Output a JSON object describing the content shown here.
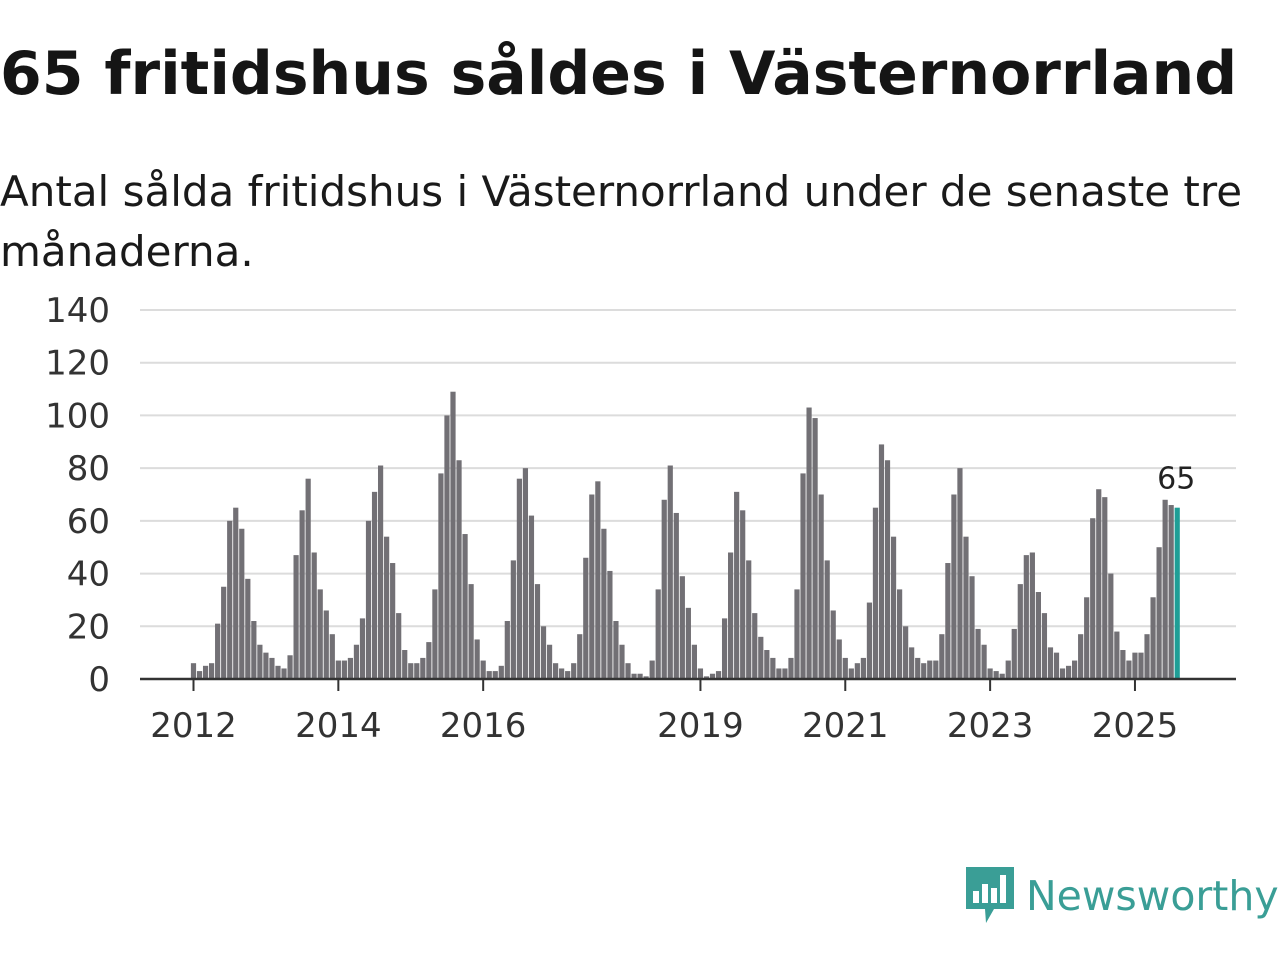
{
  "title": "65 fritidshus såldes i Västernorrland",
  "subtitle": "Antal sålda fritidshus i Västernorrland under de senaste tre månaderna.",
  "brand": {
    "name": "Newsworthy",
    "icon": "newsworthy-logo-icon",
    "color": "#3a9e96"
  },
  "colors": {
    "bar": "#727075",
    "highlight": "#1f9e96"
  },
  "chart_data": {
    "type": "bar",
    "title": "Antal sålda fritidshus i Västernorrland under de senaste tre månaderna.",
    "xlabel": "",
    "ylabel": "",
    "ylim": [
      0,
      140
    ],
    "yticks": [
      0,
      20,
      40,
      60,
      80,
      100,
      120,
      140
    ],
    "x_start": "2012-01",
    "xtick_labels": [
      {
        "label": "2012",
        "index": 0
      },
      {
        "label": "2014",
        "index": 24
      },
      {
        "label": "2016",
        "index": 48
      },
      {
        "label": "2019",
        "index": 84
      },
      {
        "label": "2021",
        "index": 108
      },
      {
        "label": "2023",
        "index": 132
      },
      {
        "label": "2025",
        "index": 156
      }
    ],
    "highlight_label": "65",
    "values": [
      6,
      3,
      5,
      6,
      21,
      35,
      60,
      65,
      57,
      38,
      22,
      13,
      10,
      8,
      5,
      4,
      9,
      47,
      64,
      76,
      48,
      34,
      26,
      17,
      7,
      7,
      8,
      13,
      23,
      60,
      71,
      81,
      54,
      44,
      25,
      11,
      6,
      6,
      8,
      14,
      34,
      78,
      100,
      109,
      83,
      55,
      36,
      15,
      7,
      3,
      3,
      5,
      22,
      45,
      76,
      80,
      62,
      36,
      20,
      13,
      6,
      4,
      3,
      6,
      17,
      46,
      70,
      75,
      57,
      41,
      22,
      13,
      6,
      2,
      2,
      1,
      7,
      34,
      68,
      81,
      63,
      39,
      27,
      13,
      4,
      1,
      2,
      3,
      23,
      48,
      71,
      64,
      45,
      25,
      16,
      11,
      8,
      4,
      4,
      8,
      34,
      78,
      103,
      99,
      70,
      45,
      26,
      15,
      8,
      4,
      6,
      8,
      29,
      65,
      89,
      83,
      54,
      34,
      20,
      12,
      8,
      6,
      7,
      7,
      17,
      44,
      70,
      80,
      54,
      39,
      19,
      13,
      4,
      3,
      2,
      7,
      19,
      36,
      47,
      48,
      33,
      25,
      12,
      10,
      4,
      5,
      7,
      17,
      31,
      61,
      72,
      69,
      40,
      18,
      11,
      7,
      10,
      10,
      17,
      31,
      50,
      68,
      66,
      65
    ]
  }
}
